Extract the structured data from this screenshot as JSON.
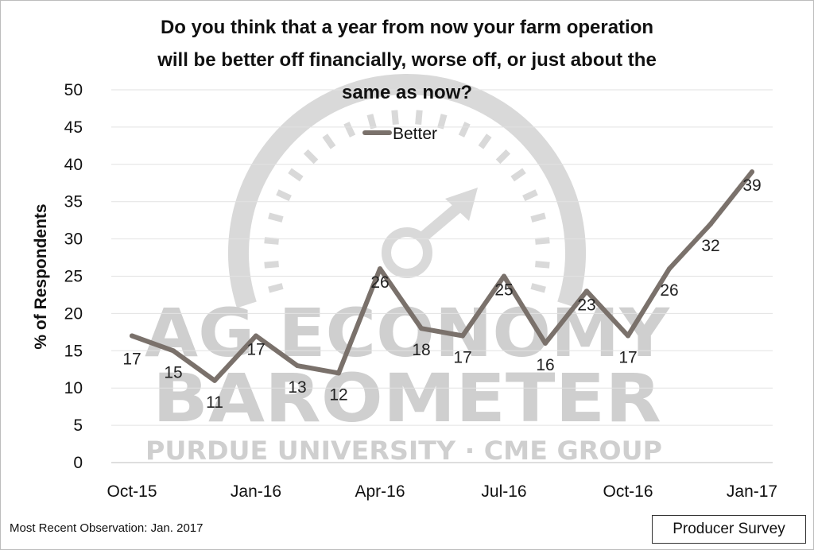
{
  "chart_data": {
    "type": "line",
    "title_lines": [
      "Do you think that a year from now your farm operation",
      "will be better off financially, worse off, or just about the",
      "same as now?"
    ],
    "ylabel": "% of Respondents",
    "xlabel": "",
    "ylim": [
      0,
      50
    ],
    "yticks": [
      0,
      5,
      10,
      15,
      20,
      25,
      30,
      35,
      40,
      45,
      50
    ],
    "grid": true,
    "legend": {
      "placement": "top-center",
      "entries": [
        "Better"
      ]
    },
    "x": [
      "Oct-15",
      "Nov-15",
      "Dec-15",
      "Jan-16",
      "Feb-16",
      "Mar-16",
      "Apr-16",
      "May-16",
      "Jun-16",
      "Jul-16",
      "Aug-16",
      "Sep-16",
      "Oct-16",
      "Nov-16",
      "Dec-16",
      "Jan-17"
    ],
    "xtick_labels": [
      "Oct-15",
      "Jan-16",
      "Apr-16",
      "Jul-16",
      "Oct-16",
      "Jan-17"
    ],
    "series": [
      {
        "name": "Better",
        "color": "#7a716b",
        "values": [
          17,
          15,
          11,
          17,
          13,
          12,
          26,
          18,
          17,
          25,
          16,
          23,
          17,
          26,
          32,
          39
        ]
      }
    ]
  },
  "watermark": {
    "line1": "AG ECONOMY",
    "line2": "BAROMETER",
    "line3": "PURDUE UNIVERSITY · CME GROUP",
    "icon": "gauge-arrow-icon"
  },
  "footnote": "Most Recent Observation: Jan. 2017",
  "badge": "Producer Survey"
}
